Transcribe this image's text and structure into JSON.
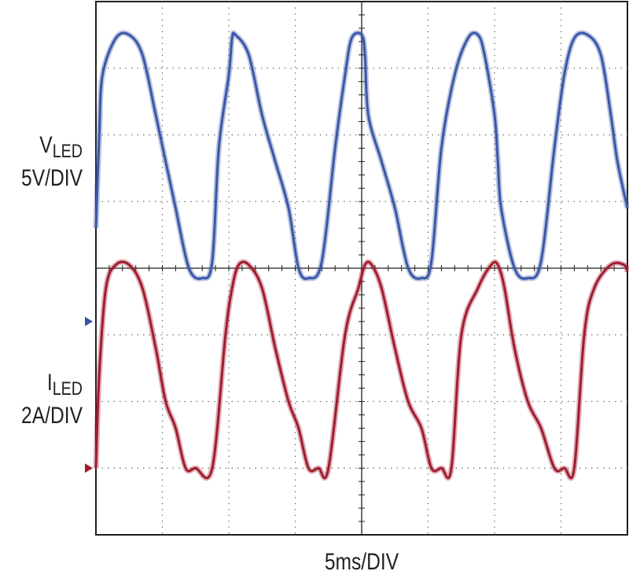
{
  "chart_data": {
    "type": "line",
    "title": "",
    "xlabel": "5ms/DIV",
    "x_unit_per_div": 5,
    "x_divisions": 8,
    "y_divisions": 8,
    "grid": true,
    "series": [
      {
        "name": "V_LED",
        "label_main": "V",
        "label_sub": "LED",
        "scale": "5V/DIV",
        "color": "#3a57a7",
        "marker_color": "#3a57a7",
        "ground_div": 3.2,
        "x": [
          0.0,
          0.05,
          0.1,
          0.3,
          0.5,
          0.7,
          0.9,
          1.05,
          1.2,
          1.4,
          1.6,
          1.75,
          1.85,
          2.0,
          2.05,
          2.1,
          2.3,
          2.5,
          2.7,
          2.9,
          3.05,
          3.2,
          3.4,
          3.6,
          3.75,
          3.85,
          4.0,
          4.05,
          4.1,
          4.3,
          4.5,
          4.7,
          4.9,
          5.05,
          5.2,
          5.4,
          5.6,
          5.75,
          5.85,
          6.0,
          6.05,
          6.1,
          6.3,
          6.5,
          6.7,
          6.9,
          7.05,
          7.2,
          7.4,
          7.6,
          7.75,
          7.85,
          8.0
        ],
        "y": [
          4.6,
          6.0,
          6.9,
          7.45,
          7.5,
          7.2,
          6.3,
          5.6,
          4.9,
          4.0,
          3.85,
          4.1,
          5.8,
          6.9,
          7.45,
          7.5,
          7.2,
          6.3,
          5.6,
          4.9,
          4.0,
          3.85,
          4.1,
          5.8,
          6.9,
          7.45,
          7.5,
          7.2,
          6.3,
          5.6,
          4.9,
          4.0,
          3.85,
          4.1,
          5.8,
          6.9,
          7.45,
          7.5,
          7.2,
          6.3,
          5.6,
          4.9,
          4.0,
          3.85,
          4.1,
          5.8,
          6.9,
          7.45,
          7.5,
          7.2,
          6.3,
          5.6,
          4.9
        ]
      },
      {
        "name": "I_LED",
        "label_main": "I",
        "label_sub": "LED",
        "scale": "2A/DIV",
        "color": "#a01c2e",
        "marker_color": "#a01c2e",
        "ground_div": 1.0,
        "x": [
          0.0,
          0.05,
          0.15,
          0.3,
          0.5,
          0.7,
          0.9,
          1.05,
          1.2,
          1.35,
          1.5,
          1.75,
          1.95,
          2.05,
          2.15,
          2.3,
          2.5,
          2.7,
          2.9,
          3.05,
          3.2,
          3.35,
          3.5,
          3.75,
          3.95,
          4.05,
          4.15,
          4.3,
          4.5,
          4.7,
          4.9,
          5.05,
          5.2,
          5.35,
          5.5,
          5.75,
          5.95,
          6.05,
          6.15,
          6.3,
          6.5,
          6.7,
          6.9,
          7.05,
          7.2,
          7.35,
          7.5,
          7.75,
          7.95,
          8.0
        ],
        "y": [
          1.0,
          2.4,
          3.7,
          4.05,
          4.05,
          3.7,
          2.8,
          2.0,
          1.6,
          1.0,
          1.0,
          1.0,
          3.0,
          3.7,
          4.05,
          4.05,
          3.7,
          2.8,
          2.0,
          1.6,
          1.0,
          1.0,
          1.0,
          3.0,
          3.7,
          4.05,
          4.05,
          3.7,
          2.8,
          2.0,
          1.6,
          1.0,
          1.0,
          1.0,
          3.0,
          3.7,
          4.05,
          4.05,
          3.7,
          2.8,
          2.0,
          1.6,
          1.0,
          1.0,
          1.0,
          3.0,
          3.7,
          4.05,
          4.05,
          3.95
        ]
      }
    ]
  }
}
